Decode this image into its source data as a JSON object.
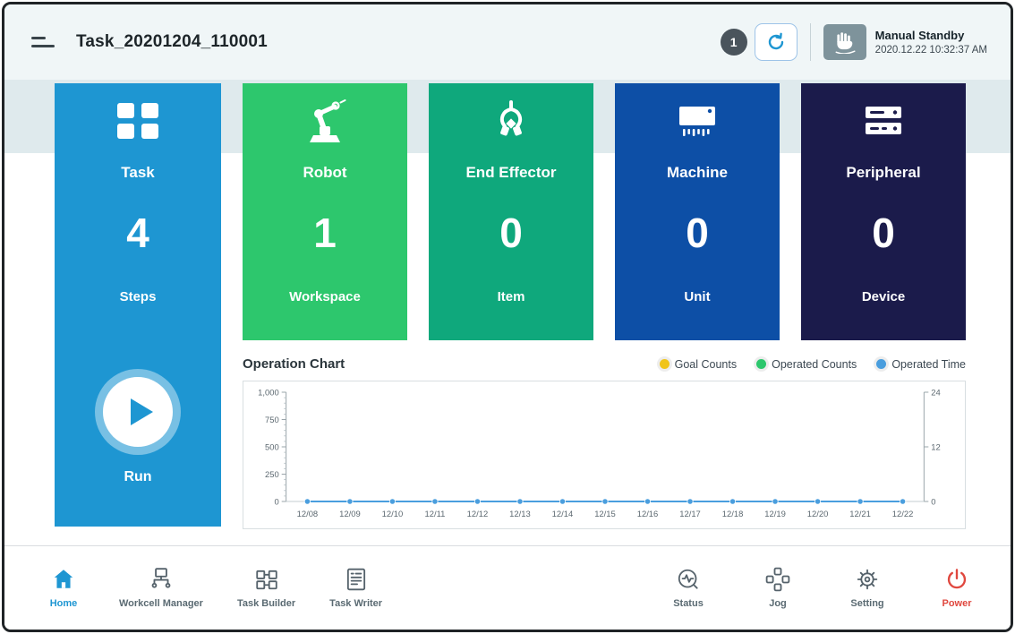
{
  "header": {
    "title": "Task_20201204_110001",
    "badge_count": "1",
    "mode_label": "Manual Standby",
    "timestamp": "2020.12.22 10:32:37 AM",
    "icons": [
      "menu-icon",
      "rotate-reset-icon",
      "manual-hand-icon"
    ]
  },
  "task_panel": {
    "icon": "task-grid-icon",
    "label": "Task",
    "value": "4",
    "unit": "Steps",
    "run_label": "Run",
    "color": "#1e96d2"
  },
  "cards": [
    {
      "icon": "robot-arm-icon",
      "label": "Robot",
      "value": "1",
      "unit": "Workspace",
      "color": "#2dc76d"
    },
    {
      "icon": "gripper-icon",
      "label": "End Effector",
      "value": "0",
      "unit": "Item",
      "color": "#0fa87c"
    },
    {
      "icon": "machine-icon",
      "label": "Machine",
      "value": "0",
      "unit": "Unit",
      "color": "#0d4fa6"
    },
    {
      "icon": "peripheral-icon",
      "label": "Peripheral",
      "value": "0",
      "unit": "Device",
      "color": "#1b1b4b"
    }
  ],
  "chart": {
    "title": "Operation Chart",
    "legend": [
      {
        "label": "Goal Counts",
        "color": "#f0c419"
      },
      {
        "label": "Operated Counts",
        "color": "#2dc76d"
      },
      {
        "label": "Operated Time",
        "color": "#4a9ede"
      }
    ]
  },
  "chart_data": {
    "type": "line",
    "title": "Operation Chart",
    "x": [
      "12/08",
      "12/09",
      "12/10",
      "12/11",
      "12/12",
      "12/13",
      "12/14",
      "12/15",
      "12/16",
      "12/17",
      "12/18",
      "12/19",
      "12/20",
      "12/21",
      "12/22"
    ],
    "series": [
      {
        "name": "Goal Counts",
        "color": "#f0c419",
        "axis": "left",
        "values": [
          0,
          0,
          0,
          0,
          0,
          0,
          0,
          0,
          0,
          0,
          0,
          0,
          0,
          0,
          0
        ]
      },
      {
        "name": "Operated Counts",
        "color": "#2dc76d",
        "axis": "left",
        "values": [
          0,
          0,
          0,
          0,
          0,
          0,
          0,
          0,
          0,
          0,
          0,
          0,
          0,
          0,
          0
        ]
      },
      {
        "name": "Operated Time",
        "color": "#4a9ede",
        "axis": "right",
        "values": [
          0,
          0,
          0,
          0,
          0,
          0,
          0,
          0,
          0,
          0,
          0,
          0,
          0,
          0,
          0
        ]
      }
    ],
    "left_axis": {
      "ticks": [
        "1,000",
        "750",
        "500",
        "250",
        "0"
      ],
      "range": [
        0,
        1000
      ]
    },
    "right_axis": {
      "ticks": [
        "24",
        "12",
        "0"
      ],
      "range": [
        0,
        24
      ]
    },
    "grid": false,
    "legend_position": "top-right"
  },
  "nav": [
    {
      "icon": "home-icon",
      "label": "Home",
      "active": true
    },
    {
      "icon": "workcell-manager-icon",
      "label": "Workcell Manager",
      "active": false
    },
    {
      "icon": "task-builder-icon",
      "label": "Task Builder",
      "active": false
    },
    {
      "icon": "task-writer-icon",
      "label": "Task Writer",
      "active": false
    },
    {
      "icon": "status-icon",
      "label": "Status",
      "active": false
    },
    {
      "icon": "jog-icon",
      "label": "Jog",
      "active": false
    },
    {
      "icon": "setting-icon",
      "label": "Setting",
      "active": false
    },
    {
      "icon": "power-icon",
      "label": "Power",
      "active": false
    }
  ],
  "colors": {
    "accent_blue": "#1e96d2",
    "power_red": "#e0483f",
    "band_bg": "#dfeaed",
    "nav_text": "#5a6a72"
  }
}
